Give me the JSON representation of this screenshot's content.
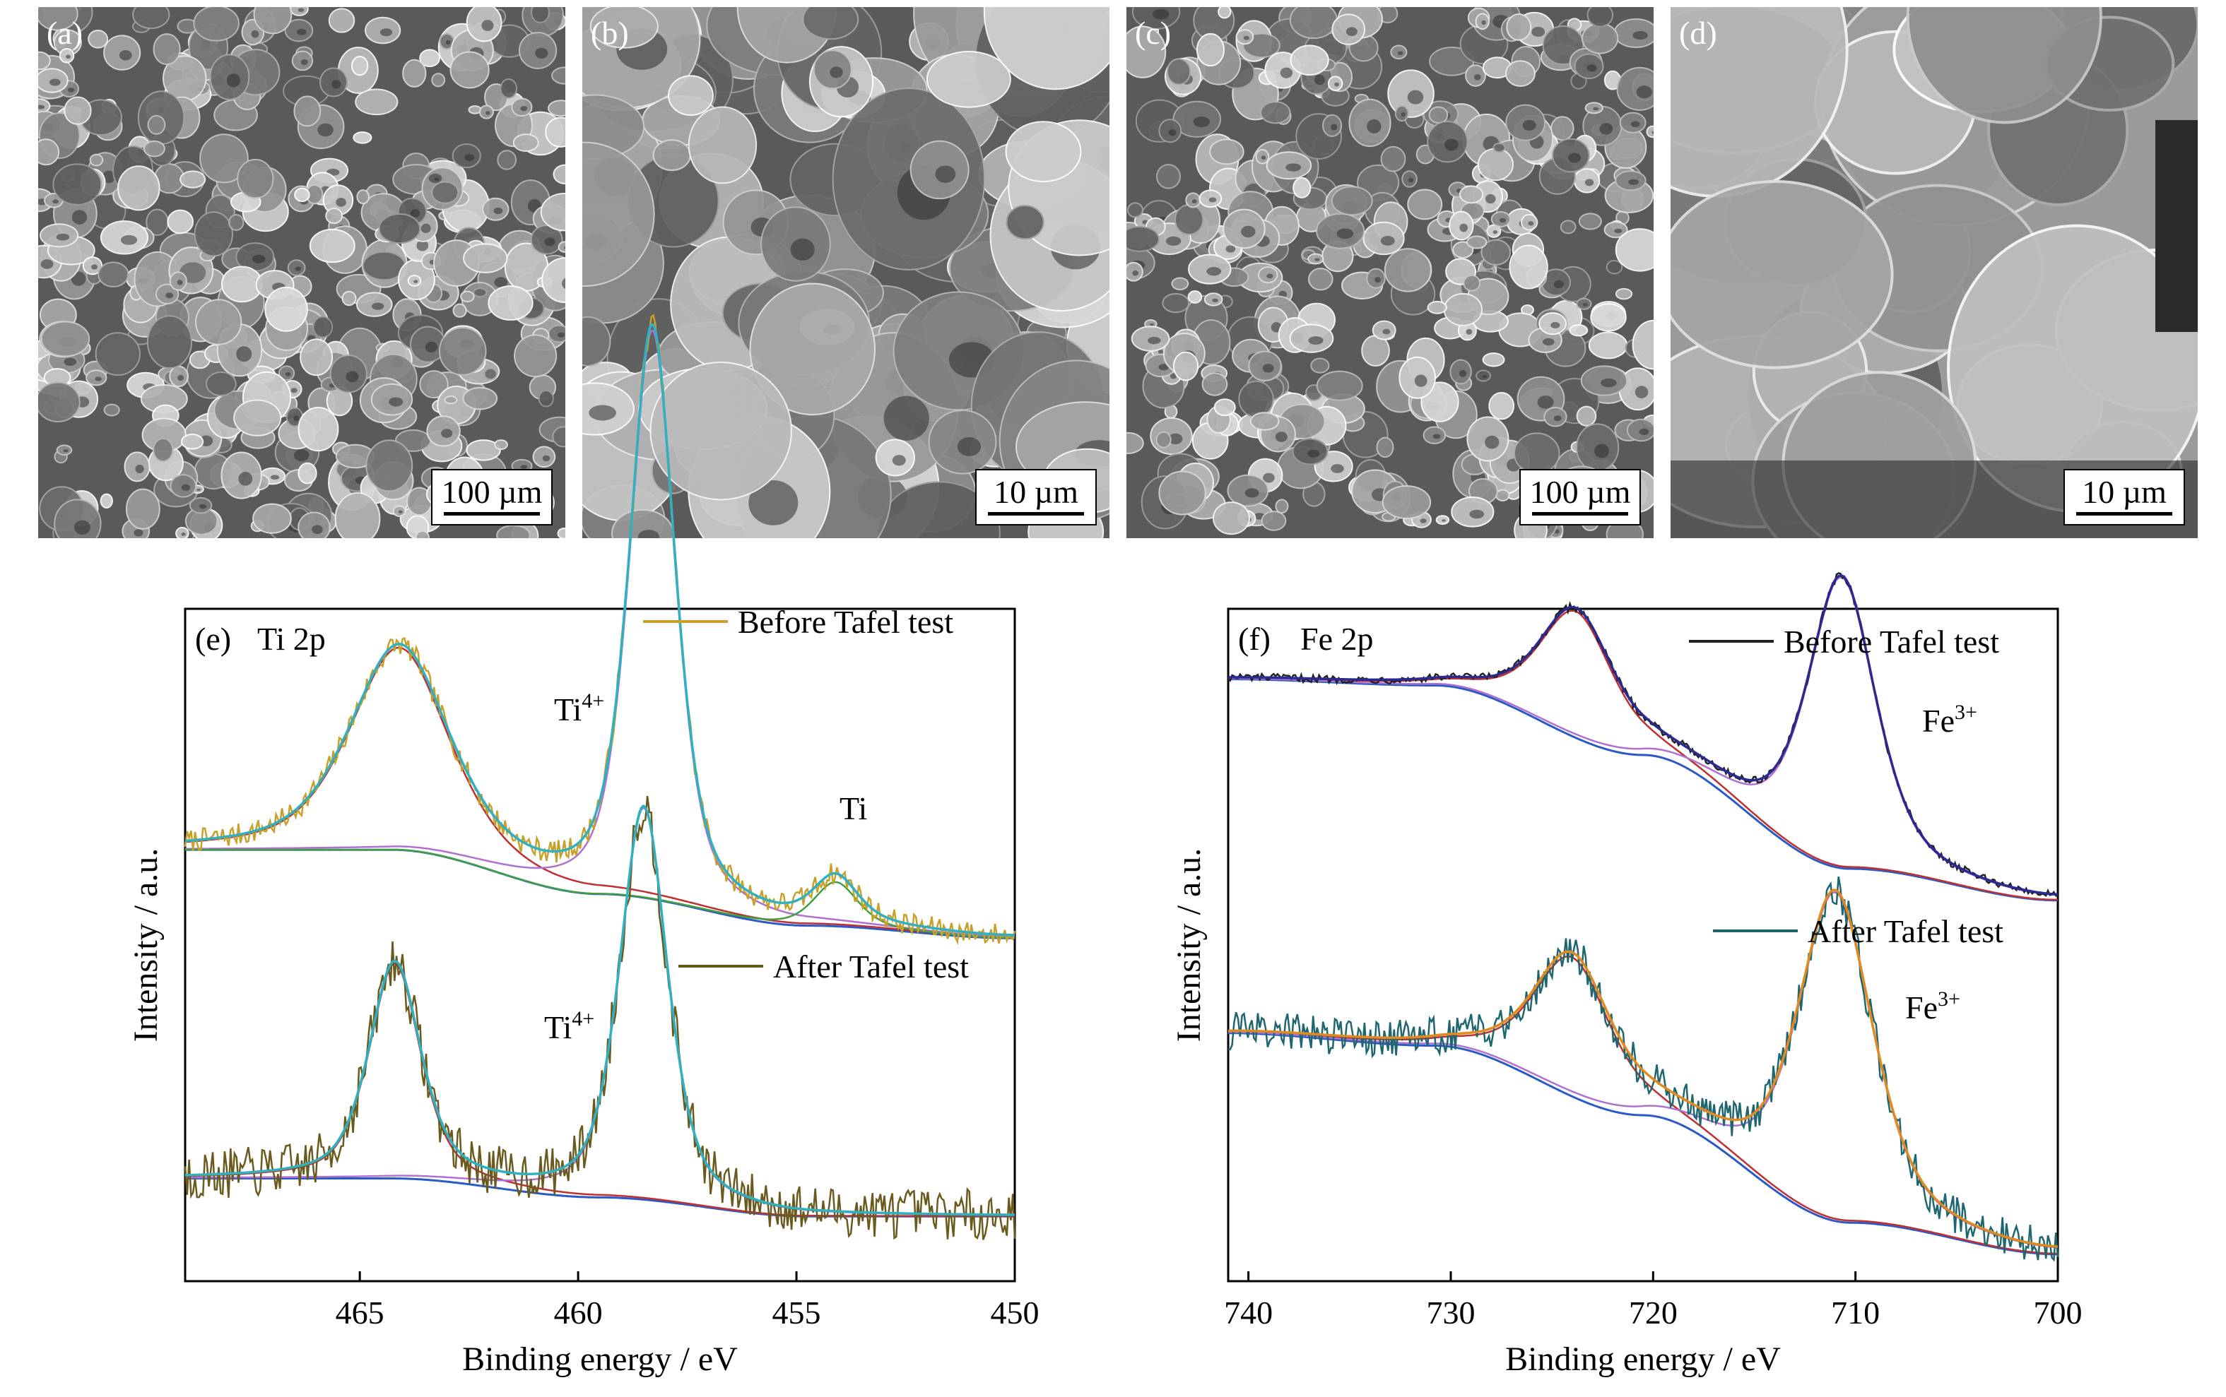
{
  "sem_panels": [
    {
      "label": "(a)",
      "scale": "100 µm"
    },
    {
      "label": "(b)",
      "scale": "10 µm"
    },
    {
      "label": "(c)",
      "scale": "100 µm"
    },
    {
      "label": "(d)",
      "scale": "10 µm"
    }
  ],
  "chart_data": [
    {
      "type": "line",
      "panel_label": "(e)",
      "element_label": "Ti 2p",
      "xlabel": "Binding energy / eV",
      "ylabel": "Intensity / a.u.",
      "xlim": [
        469,
        450
      ],
      "x_ticks": [
        465,
        460,
        455,
        450
      ],
      "y_ticks_visible": false,
      "legend": [
        {
          "label": "Before Tafel test",
          "color": "#c8a02a"
        },
        {
          "label": "After Tafel test",
          "color": "#6b5a1e"
        }
      ],
      "annotations": [
        {
          "base": "Ti",
          "sup": "4+"
        },
        {
          "base": "Ti",
          "sup": ""
        },
        {
          "base": "Ti",
          "sup": "4+"
        }
      ],
      "series": [
        {
          "name": "Before Tafel test",
          "offset": 0.52,
          "color": "#c8a02a",
          "baseline": [
            0.12,
            0.12,
            0.05,
            0.0,
            -0.02
          ],
          "peaks": [
            {
              "center": 464.1,
              "height": 0.32,
              "width": 1.35
            },
            {
              "center": 458.3,
              "height": 0.9,
              "width": 0.62
            },
            {
              "center": 454.1,
              "height": 0.07,
              "width": 0.6
            }
          ],
          "noise": 0.018
        },
        {
          "name": "After Tafel test",
          "offset": 0.06,
          "color": "#6b5a1e",
          "baseline": [
            0.06,
            0.06,
            0.03,
            0.0,
            -0.0
          ],
          "peaks": [
            {
              "center": 464.2,
              "height": 0.34,
              "width": 0.7
            },
            {
              "center": 458.5,
              "height": 0.62,
              "width": 0.65
            }
          ],
          "noise": 0.04
        }
      ]
    },
    {
      "type": "line",
      "panel_label": "(f)",
      "element_label": "Fe 2p",
      "xlabel": "Binding energy / eV",
      "ylabel": "Intensity / a.u.",
      "xlim": [
        741,
        700
      ],
      "x_ticks": [
        740,
        730,
        720,
        710,
        700
      ],
      "y_ticks_visible": false,
      "legend": [
        {
          "label": "Before Tafel test",
          "color": "#222222"
        },
        {
          "label": "After Tafel test",
          "color": "#1e6670"
        }
      ],
      "annotations": [
        {
          "base": "Fe",
          "sup": "3+"
        },
        {
          "base": "Fe",
          "sup": "3+"
        }
      ],
      "series": [
        {
          "name": "Before Tafel test",
          "offset": 0.56,
          "color": "#222222",
          "baseline": [
            0.35,
            0.34,
            0.23,
            0.05,
            0.0
          ],
          "peaks": [
            {
              "center": 723.8,
              "height": 0.2,
              "width": 2.2
            },
            {
              "center": 710.7,
              "height": 0.46,
              "width": 2.0
            }
          ],
          "noise": 0.006
        },
        {
          "name": "After Tafel test",
          "offset": 0.0,
          "color": "#1e6670",
          "baseline": [
            0.35,
            0.33,
            0.22,
            0.05,
            0.0
          ],
          "peaks": [
            {
              "center": 724.0,
              "height": 0.22,
              "width": 2.3
            },
            {
              "center": 711.0,
              "height": 0.52,
              "width": 2.2
            }
          ],
          "noise": 0.03
        }
      ]
    }
  ]
}
